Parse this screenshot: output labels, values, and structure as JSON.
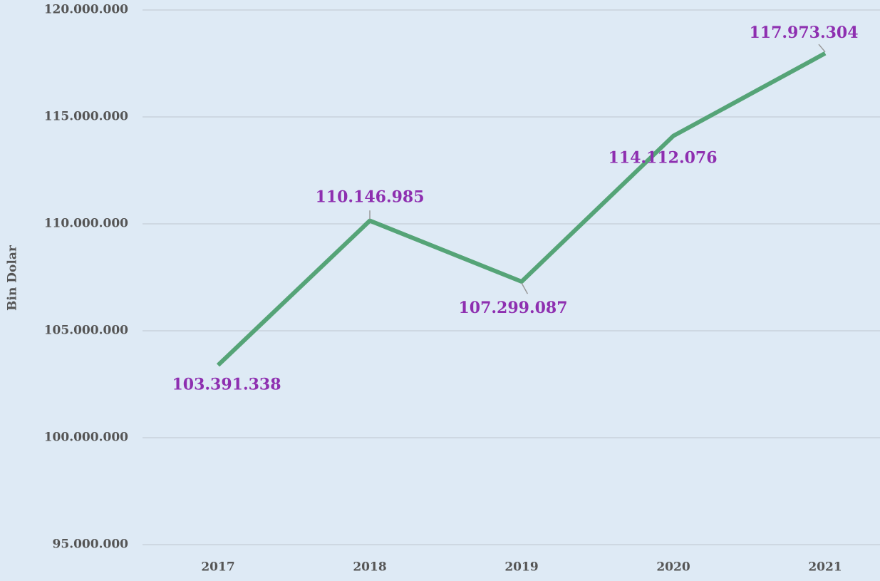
{
  "chart_data": {
    "type": "line",
    "y_label": "Bin Dolar",
    "categories": [
      "2017",
      "2018",
      "2019",
      "2020",
      "2021"
    ],
    "series": [
      {
        "name": "Bin Dolar",
        "color": "#55a477",
        "values": [
          103391338,
          110146985,
          107299087,
          114112076,
          117973304
        ],
        "value_labels": [
          "103.391.338",
          "110.146.985",
          "107.299.087",
          "114.112.076",
          "117.973.304"
        ],
        "label_color": "#8e2fb0"
      }
    ],
    "ylim": [
      95000000,
      120000000
    ],
    "yticks": [
      {
        "value": 95000000,
        "label": "95.000.000"
      },
      {
        "value": 100000000,
        "label": "100.000.000"
      },
      {
        "value": 105000000,
        "label": "105.000.000"
      },
      {
        "value": 110000000,
        "label": "110.000.000"
      },
      {
        "value": 115000000,
        "label": "115.000.000"
      },
      {
        "value": 120000000,
        "label": "120.000.000"
      }
    ],
    "grid": true
  }
}
